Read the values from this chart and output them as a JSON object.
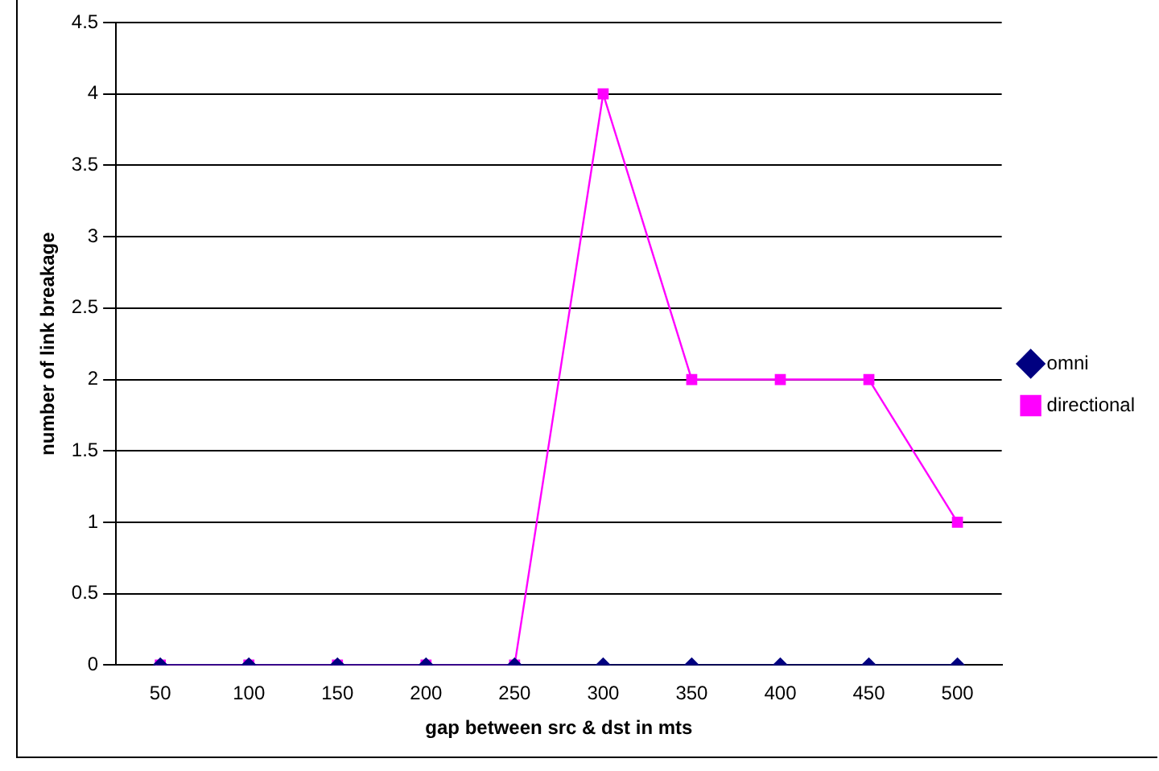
{
  "chart_data": {
    "type": "line",
    "xlabel": "gap between src & dst in mts",
    "ylabel": "number of link breakage",
    "categories": [
      "50",
      "100",
      "150",
      "200",
      "250",
      "300",
      "350",
      "400",
      "450",
      "500"
    ],
    "series": [
      {
        "name": "omni",
        "color": "#000080",
        "marker": "diamond",
        "values": [
          0,
          0,
          0,
          0,
          0,
          0,
          0,
          0,
          0,
          0
        ]
      },
      {
        "name": "directional",
        "color": "#ff00ff",
        "marker": "square",
        "values": [
          0,
          0,
          0,
          0,
          0,
          4,
          2,
          2,
          2,
          1
        ]
      }
    ],
    "ylim": [
      0,
      4.5
    ],
    "yticks": [
      0,
      0.5,
      1,
      1.5,
      2,
      2.5,
      3,
      3.5,
      4,
      4.5
    ],
    "grid": "y",
    "legend": "right"
  }
}
